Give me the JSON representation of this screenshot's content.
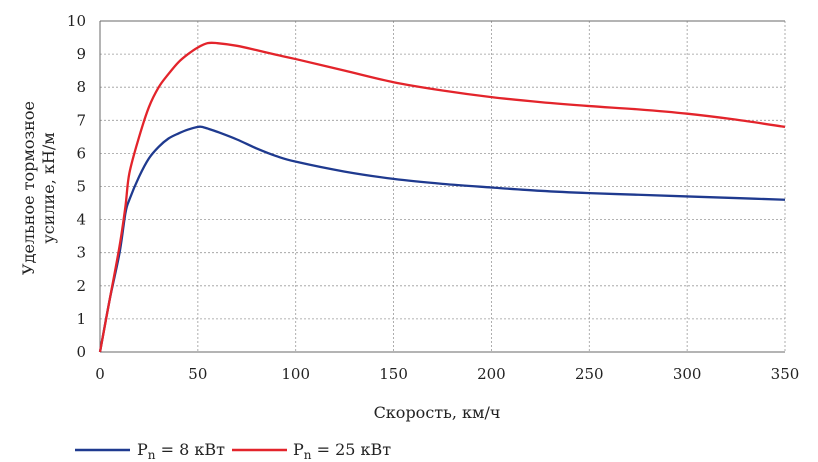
{
  "chart_data": {
    "type": "line",
    "title": "",
    "xlabel": "Скорость, км/ч",
    "ylabel": [
      "Удельное тормозное",
      "усилие, кН/м"
    ],
    "xlim": [
      0,
      350
    ],
    "ylim": [
      0,
      10
    ],
    "xticks": [
      0,
      50,
      100,
      150,
      200,
      250,
      300,
      350
    ],
    "yticks": [
      0,
      1,
      2,
      3,
      4,
      5,
      6,
      7,
      8,
      9,
      10
    ],
    "grid": true,
    "legend_position": "bottom",
    "series": [
      {
        "name_main": "P",
        "name_sub": "n",
        "name_rest": " = 8 кВт",
        "color": "#1f3a8f",
        "points": [
          [
            0,
            0
          ],
          [
            5,
            1.6
          ],
          [
            10,
            3.0
          ],
          [
            13,
            4.2
          ],
          [
            15,
            4.6
          ],
          [
            20,
            5.3
          ],
          [
            25,
            5.85
          ],
          [
            30,
            6.2
          ],
          [
            35,
            6.45
          ],
          [
            40,
            6.6
          ],
          [
            45,
            6.72
          ],
          [
            50,
            6.8
          ],
          [
            52,
            6.8
          ],
          [
            55,
            6.75
          ],
          [
            60,
            6.65
          ],
          [
            70,
            6.42
          ],
          [
            80,
            6.15
          ],
          [
            90,
            5.92
          ],
          [
            100,
            5.75
          ],
          [
            125,
            5.45
          ],
          [
            150,
            5.23
          ],
          [
            175,
            5.08
          ],
          [
            200,
            4.97
          ],
          [
            225,
            4.87
          ],
          [
            250,
            4.8
          ],
          [
            275,
            4.75
          ],
          [
            300,
            4.7
          ],
          [
            325,
            4.65
          ],
          [
            350,
            4.6
          ]
        ]
      },
      {
        "name_main": "P",
        "name_sub": "n",
        "name_rest": " = 25 кВт",
        "color": "#e3242b",
        "points": [
          [
            0,
            0
          ],
          [
            5,
            1.6
          ],
          [
            10,
            3.2
          ],
          [
            13,
            4.4
          ],
          [
            15,
            5.4
          ],
          [
            20,
            6.5
          ],
          [
            25,
            7.4
          ],
          [
            30,
            8.0
          ],
          [
            35,
            8.4
          ],
          [
            40,
            8.75
          ],
          [
            45,
            9.0
          ],
          [
            50,
            9.2
          ],
          [
            55,
            9.33
          ],
          [
            60,
            9.33
          ],
          [
            70,
            9.25
          ],
          [
            80,
            9.12
          ],
          [
            90,
            8.98
          ],
          [
            100,
            8.85
          ],
          [
            125,
            8.5
          ],
          [
            150,
            8.15
          ],
          [
            175,
            7.9
          ],
          [
            200,
            7.7
          ],
          [
            225,
            7.55
          ],
          [
            250,
            7.43
          ],
          [
            275,
            7.33
          ],
          [
            300,
            7.2
          ],
          [
            325,
            7.02
          ],
          [
            350,
            6.8
          ]
        ]
      }
    ]
  }
}
